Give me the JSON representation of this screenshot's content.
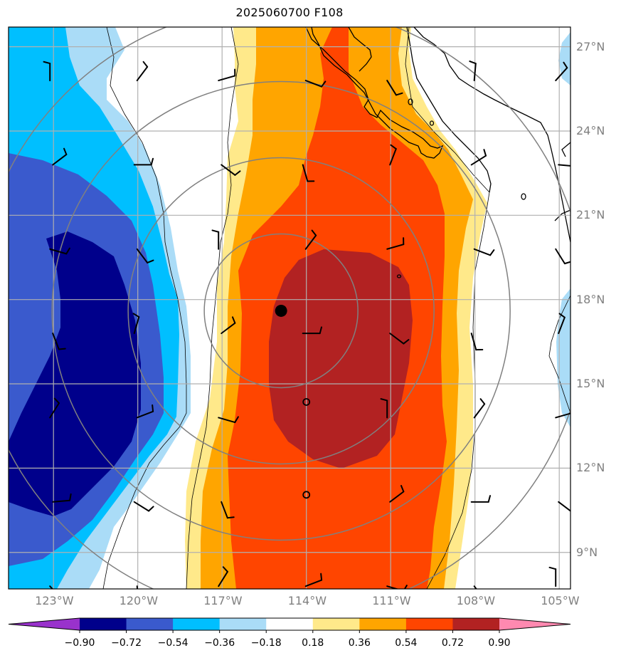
{
  "title": "2025060700 F108",
  "map": {
    "lon_range": [
      -124.6,
      -104.6
    ],
    "lat_range": [
      7.7,
      27.7
    ],
    "lat_ticks": [
      {
        "value": 9,
        "label": "9°N"
      },
      {
        "value": 12,
        "label": "12°N"
      },
      {
        "value": 15,
        "label": "15°N"
      },
      {
        "value": 18,
        "label": "18°N"
      },
      {
        "value": 21,
        "label": "21°N"
      },
      {
        "value": 24,
        "label": "24°N"
      },
      {
        "value": 27,
        "label": "27°N"
      }
    ],
    "lon_ticks": [
      {
        "value": -123,
        "label": "123°W"
      },
      {
        "value": -120,
        "label": "120°W"
      },
      {
        "value": -117,
        "label": "117°W"
      },
      {
        "value": -114,
        "label": "114°W"
      },
      {
        "value": -111,
        "label": "111°W"
      },
      {
        "value": -108,
        "label": "108°W"
      },
      {
        "value": -105,
        "label": "105°W"
      }
    ],
    "storm_center": {
      "lon": -114.9,
      "lat": 17.6
    },
    "gridline_color": "#b0b0b0",
    "ring_color": "#808080"
  },
  "colorbar": {
    "levels": [
      "−0.90",
      "−0.72",
      "−0.54",
      "−0.36",
      "−0.18",
      "0.18",
      "0.36",
      "0.54",
      "0.72",
      "0.90"
    ],
    "colors": [
      "#9932cc",
      "#00008b",
      "#3a5acd",
      "#00bfff",
      "#aadcf7",
      "#ffffff",
      "#ffe98a",
      "#ffa500",
      "#ff4500",
      "#b22222",
      "#ff89b0"
    ]
  }
}
